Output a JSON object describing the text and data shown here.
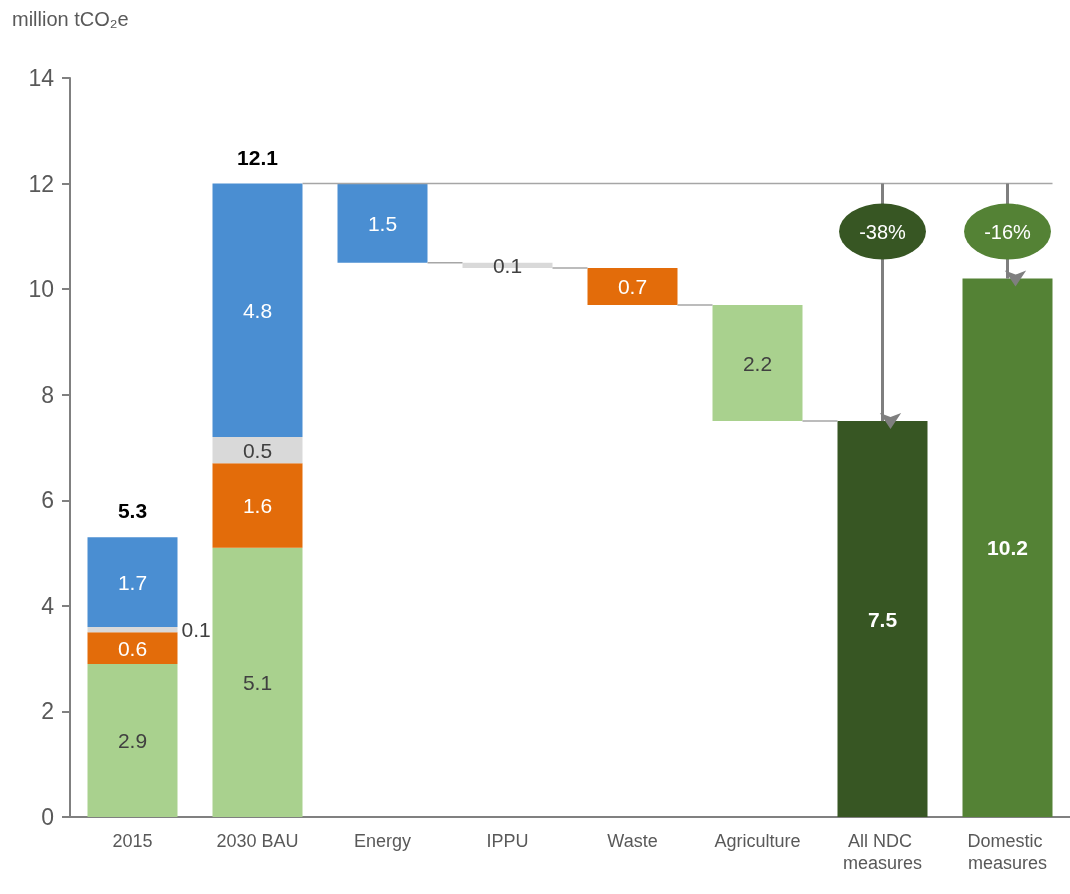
{
  "chart_data": {
    "type": "bar",
    "stacked": true,
    "ylabel": "million tCO₂e",
    "categories": [
      "2015",
      "2030 BAU",
      "Energy",
      "IPPU",
      "Waste",
      "Agriculture",
      "All NDC measures",
      "Domestic measures"
    ],
    "series": [
      {
        "color": "#a9d18e",
        "values": [
          2.9,
          5.1,
          null,
          null,
          null,
          2.2,
          null,
          null
        ],
        "base": [
          null,
          null,
          null,
          null,
          null,
          7.5,
          null,
          null
        ]
      },
      {
        "color": "#e36c0a",
        "values": [
          0.6,
          1.6,
          null,
          null,
          0.7,
          null,
          null,
          null
        ],
        "base": [
          null,
          null,
          null,
          null,
          9.7,
          null,
          null,
          null
        ]
      },
      {
        "color": "#d9d9d9",
        "values": [
          0.1,
          0.5,
          null,
          0.1,
          null,
          null,
          null,
          null
        ],
        "base": [
          null,
          null,
          null,
          10.4,
          null,
          null,
          null,
          null
        ]
      },
      {
        "color": "#4a8ed2",
        "values": [
          1.7,
          4.8,
          1.5,
          null,
          null,
          null,
          null,
          null
        ],
        "base": [
          null,
          null,
          10.5,
          null,
          null,
          null,
          null,
          null
        ]
      },
      {
        "color": "#375623",
        "values": [
          null,
          null,
          null,
          null,
          null,
          null,
          7.5,
          null
        ]
      },
      {
        "color": "#548235",
        "values": [
          null,
          null,
          null,
          null,
          null,
          null,
          null,
          10.2
        ]
      }
    ],
    "ylim": [
      0,
      14
    ],
    "yticks": [
      0,
      2,
      4,
      6,
      8,
      10,
      12,
      14
    ],
    "data_labels": true,
    "totals": [
      "5.3",
      "12.1",
      null,
      null,
      null,
      null,
      null,
      null
    ],
    "ref_lines": [
      {
        "axis": "y",
        "value": 12
      }
    ],
    "annotations": [
      {
        "text": "-38%",
        "x": "All NDC measures",
        "y": 12
      },
      {
        "text": "-16%",
        "x": "Domestic measures",
        "y": 12
      }
    ]
  }
}
